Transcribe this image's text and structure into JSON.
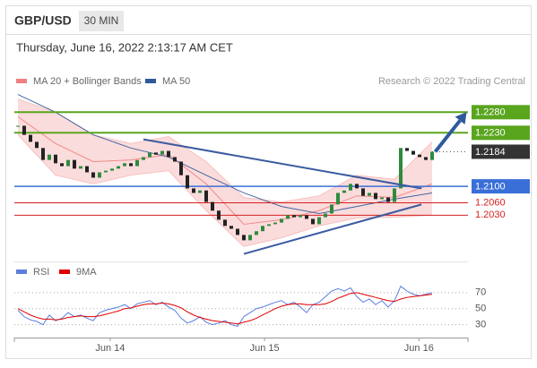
{
  "chart_data": [
    {
      "type": "candlestick",
      "title": "GBP/USD",
      "subtitle": "30 MIN",
      "date": "Thursday, June 16, 2022 2:13:17 AM CET",
      "credit": "Research © 2022 Trading Central",
      "up_color": "#2e8b3e",
      "down_color": "#222222",
      "values": [
        1.2247,
        1.2225,
        1.2208,
        1.2193,
        1.2164,
        1.2177,
        1.2156,
        1.2149,
        1.2164,
        1.2143,
        1.2149,
        1.2134,
        1.2121,
        1.2134,
        1.2138,
        1.2143,
        1.2149,
        1.2156,
        1.2149,
        1.2164,
        1.2171,
        1.2182,
        1.2177,
        1.2186,
        1.2171,
        1.216,
        1.2127,
        1.2095,
        1.2084,
        1.209,
        1.2062,
        1.2041,
        1.2019,
        1.2004,
        1.1997,
        1.1982,
        1.1969,
        1.1982,
        1.1991,
        1.2004,
        1.2008,
        1.2012,
        1.2021,
        1.203,
        1.2025,
        1.203,
        1.2021,
        1.2008,
        1.2025,
        1.2034,
        1.2056,
        1.2084,
        1.209,
        1.2106,
        1.2095,
        1.2077,
        1.2084,
        1.2069,
        1.2073,
        1.2062,
        1.2095,
        1.2193,
        1.2186,
        1.2177,
        1.2171,
        1.2164,
        1.2184
      ],
      "xlim": [
        0,
        72
      ],
      "xticks": [
        {
          "value": 14.7,
          "label": "Jun 14"
        },
        {
          "value": 39.3,
          "label": "Jun 15"
        },
        {
          "value": 63.9,
          "label": "Jun 16"
        }
      ],
      "ylim": [
        1.1922,
        1.2335
      ],
      "series": [
        {
          "name": "MA 20 + Bollinger Bands",
          "color": "#f08080",
          "x": [
            0,
            6,
            12,
            18,
            24,
            30,
            36,
            42,
            48,
            54,
            60,
            66
          ],
          "values": [
            1.2269,
            1.2204,
            1.216,
            1.2164,
            1.2177,
            1.2106,
            1.2008,
            1.2019,
            1.2041,
            1.2077,
            1.2073,
            1.2106
          ],
          "upper": [
            1.2312,
            1.228,
            1.2225,
            1.2204,
            1.2221,
            1.216,
            1.2073,
            1.2062,
            1.2077,
            1.2127,
            1.2117,
            1.2208
          ],
          "lower": [
            1.2225,
            1.2127,
            1.2106,
            1.2127,
            1.2138,
            1.2041,
            1.1954,
            1.1975,
            1.2004,
            1.2023,
            1.2025,
            1.203
          ]
        },
        {
          "name": "MA 50",
          "color": "#2e5a9c",
          "x": [
            0,
            6,
            12,
            18,
            24,
            30,
            36,
            42,
            48,
            54,
            60,
            66
          ],
          "values": [
            1.2323,
            1.228,
            1.2225,
            1.2193,
            1.2171,
            1.2127,
            1.2084,
            1.2051,
            1.2034,
            1.2051,
            1.2069,
            1.2084
          ]
        }
      ],
      "levels": [
        {
          "value": 1.228,
          "label": "1.2280",
          "color": "#5aa51e",
          "style": "box"
        },
        {
          "value": 1.223,
          "label": "1.2230",
          "color": "#5aa51e",
          "style": "box"
        },
        {
          "value": 1.2184,
          "label": "1.2184",
          "color": "#333333",
          "style": "current"
        },
        {
          "value": 1.21,
          "label": "1.2100",
          "color": "#3a6fd8",
          "style": "box"
        },
        {
          "value": 1.206,
          "label": "1.2060",
          "color": "#d42020",
          "style": "text"
        },
        {
          "value": 1.203,
          "label": "1.2030",
          "color": "#d42020",
          "style": "text"
        }
      ],
      "trendlines": [
        {
          "color": "#3a5ba0",
          "points": [
            [
              20,
              1.2214
            ],
            [
              64.3,
              1.2095
            ]
          ]
        },
        {
          "color": "#3a5ba0",
          "points": [
            [
              36,
              1.1936
            ],
            [
              64.3,
              1.2056
            ]
          ]
        }
      ],
      "arrow": {
        "color": "#2e5a9c",
        "from": [
          66.5,
          1.2184
        ],
        "to": [
          71.5,
          1.228
        ]
      }
    },
    {
      "type": "line",
      "ylim": [
        15,
        100
      ],
      "yticks": [
        70,
        50,
        30
      ],
      "series": [
        {
          "name": "RSI",
          "color": "#5b7fe0",
          "values": [
            48,
            40,
            36,
            34,
            30,
            42,
            35,
            38,
            45,
            40,
            42,
            38,
            35,
            45,
            48,
            50,
            52,
            55,
            50,
            56,
            58,
            60,
            55,
            58,
            52,
            48,
            38,
            32,
            35,
            40,
            33,
            30,
            32,
            35,
            30,
            28,
            40,
            45,
            50,
            52,
            55,
            58,
            60,
            55,
            58,
            52,
            45,
            55,
            58,
            65,
            72,
            75,
            72,
            76,
            65,
            58,
            62,
            55,
            60,
            52,
            60,
            78,
            72,
            68,
            66,
            68,
            70
          ]
        },
        {
          "name": "9MA",
          "color": "#e00000",
          "values": [
            50,
            46,
            42,
            39,
            37,
            37,
            36,
            37,
            39,
            40,
            41,
            40,
            40,
            41,
            43,
            45,
            47,
            50,
            51,
            53,
            55,
            56,
            56,
            57,
            56,
            54,
            51,
            46,
            42,
            39,
            37,
            35,
            34,
            33,
            32,
            31,
            33,
            35,
            38,
            42,
            46,
            50,
            53,
            55,
            56,
            56,
            55,
            55,
            55,
            56,
            59,
            63,
            66,
            69,
            70,
            68,
            66,
            64,
            62,
            60,
            59,
            62,
            64,
            65,
            66,
            67,
            68
          ]
        }
      ]
    }
  ]
}
